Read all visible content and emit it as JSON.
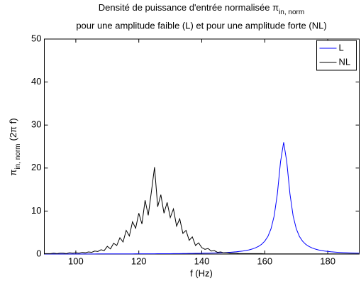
{
  "chart_data": {
    "type": "line",
    "title": "Densité de puissance d'entrée normalisée π",
    "title_subscript": "in, norm",
    "subtitle": "pour une amplitude faible (L) et pour une amplitude forte (NL)",
    "xlabel": "f (Hz)",
    "ylabel": "π",
    "ylabel_subscript": "in, norm",
    "ylabel_suffix": "(2π f)",
    "xlim": [
      90,
      190
    ],
    "xticks": [
      100,
      120,
      140,
      160,
      180
    ],
    "ylim": [
      0,
      50
    ],
    "yticks": [
      0,
      10,
      20,
      30,
      40,
      50
    ],
    "legend": "top-right",
    "x": [
      90,
      91,
      92,
      93,
      94,
      95,
      96,
      97,
      98,
      99,
      100,
      101,
      102,
      103,
      104,
      105,
      106,
      107,
      108,
      109,
      110,
      111,
      112,
      113,
      114,
      115,
      116,
      117,
      118,
      119,
      120,
      121,
      122,
      123,
      124,
      125,
      126,
      127,
      128,
      129,
      130,
      131,
      132,
      133,
      134,
      135,
      136,
      137,
      138,
      139,
      140,
      141,
      142,
      143,
      144,
      145,
      146,
      147,
      148,
      149,
      150,
      151,
      152,
      153,
      154,
      155,
      156,
      157,
      158,
      159,
      160,
      161,
      162,
      163,
      164,
      165,
      166,
      167,
      168,
      169,
      170,
      171,
      172,
      173,
      174,
      175,
      176,
      177,
      178,
      179,
      180,
      181,
      182,
      183,
      184,
      185,
      186,
      187,
      188,
      189,
      190
    ],
    "series": [
      {
        "name": "L",
        "color": "#0000ff",
        "values": [
          0.02,
          0.02,
          0.02,
          0.02,
          0.02,
          0.02,
          0.02,
          0.02,
          0.02,
          0.02,
          0.03,
          0.03,
          0.03,
          0.03,
          0.03,
          0.03,
          0.03,
          0.04,
          0.04,
          0.04,
          0.04,
          0.04,
          0.04,
          0.04,
          0.05,
          0.05,
          0.05,
          0.05,
          0.05,
          0.06,
          0.06,
          0.06,
          0.06,
          0.07,
          0.07,
          0.07,
          0.08,
          0.08,
          0.08,
          0.09,
          0.09,
          0.1,
          0.11,
          0.11,
          0.12,
          0.13,
          0.14,
          0.15,
          0.16,
          0.17,
          0.18,
          0.2,
          0.21,
          0.23,
          0.25,
          0.27,
          0.3,
          0.33,
          0.37,
          0.42,
          0.47,
          0.53,
          0.61,
          0.7,
          0.82,
          0.97,
          1.17,
          1.43,
          1.78,
          2.27,
          3.0,
          4.1,
          5.9,
          8.9,
          14.0,
          21.4,
          26,
          21.4,
          14.0,
          8.9,
          5.9,
          4.1,
          3.0,
          2.27,
          1.78,
          1.43,
          1.17,
          0.97,
          0.82,
          0.7,
          0.61,
          0.53,
          0.47,
          0.42,
          0.37,
          0.33,
          0.3,
          0.27,
          0.25,
          0.23,
          0.21
        ]
      },
      {
        "name": "NL",
        "color": "#000000",
        "values": [
          0.1,
          0.1,
          0.1,
          0.2,
          0.1,
          0.2,
          0.2,
          0.1,
          0.3,
          0.2,
          0.3,
          0.2,
          0.4,
          0.3,
          0.5,
          0.4,
          0.7,
          0.6,
          1.0,
          0.8,
          1.8,
          1.2,
          2.5,
          2.0,
          3.8,
          2.8,
          5.5,
          4.2,
          7.5,
          6.0,
          9.5,
          7.0,
          12.5,
          9.0,
          14.5,
          20.2,
          11.0,
          13.8,
          9.5,
          12.0,
          8.5,
          10.5,
          6.5,
          8.2,
          4.8,
          5.5,
          3.2,
          4.0,
          2.0,
          2.6,
          1.5,
          1.1,
          1.3,
          0.7,
          0.8,
          0.4,
          0.5,
          0.3,
          0.3,
          0.2,
          0.2,
          0.2,
          0.1,
          0.1,
          0.1,
          0.1,
          0.1,
          0.1,
          0.1,
          0.1,
          0.05,
          0.05,
          0.05,
          0.05,
          0.05,
          0.05,
          0.05,
          0.05,
          0.05,
          0.05,
          0.05,
          0.05,
          0.05,
          0.05,
          0.05,
          0.05,
          0.05,
          0.05,
          0.05,
          0.05,
          0.05,
          0.05,
          0.05,
          0.05,
          0.05,
          0.05,
          0.05,
          0.05,
          0.05,
          0.05,
          0.05
        ]
      }
    ]
  }
}
